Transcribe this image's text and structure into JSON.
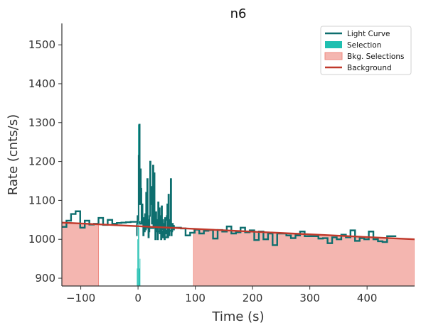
{
  "chart_data": {
    "type": "line",
    "title": "n6",
    "xlabel": "Time (s)",
    "ylabel": "Rate (cnts/s)",
    "xlim": [
      -133,
      483
    ],
    "ylim": [
      880,
      1555
    ],
    "xticks": [
      -100,
      0,
      100,
      200,
      300,
      400
    ],
    "yticks": [
      900,
      1000,
      1100,
      1200,
      1300,
      1400,
      1500
    ],
    "grid": false,
    "legend_position": "top-right",
    "legend": [
      {
        "label": "Light Curve",
        "kind": "line",
        "color": "#0d6e6e"
      },
      {
        "label": "Selection",
        "kind": "patch",
        "color": "#1fbfb0"
      },
      {
        "label": "Bkg. Selections",
        "kind": "patch",
        "color": "#f4b6b0"
      },
      {
        "label": "Background",
        "kind": "line",
        "color": "#c0392b"
      }
    ],
    "colors": {
      "light_curve": "#0d6e6e",
      "selection": "#1fbfb0",
      "bkg_fill": "#f4b6b0",
      "bkg_edge": "#ee8a80",
      "background": "#c0392b"
    },
    "background_line": {
      "x": [
        -133,
        483
      ],
      "y": [
        1043,
        1000
      ]
    },
    "bkg_selections": [
      [
        -133,
        -69
      ],
      [
        97,
        483
      ]
    ],
    "selection": {
      "range": [
        -2,
        4
      ],
      "values": [
        925,
        1000,
        1295,
        1030,
        925,
        950
      ]
    },
    "light_curve_coarse": {
      "step": 8,
      "x_start": -133,
      "values": [
        1032,
        1048,
        1065,
        1072,
        1030,
        1048,
        1038,
        1040,
        1055,
        1037,
        1050,
        1040,
        1042,
        1043,
        1044,
        1045,
        1045,
        1040,
        1030,
        1029,
        1038,
        1020,
        1005,
        1022,
        1030,
        1030,
        1028,
        1010,
        1017,
        1025,
        1015,
        1022,
        1024,
        1002,
        1024,
        1020,
        1033,
        1015,
        1018,
        1030,
        1018,
        1023,
        998,
        1020,
        1000,
        1015,
        985,
        1015,
        1015,
        1010,
        1003,
        1010,
        1020,
        1008,
        1008,
        1008,
        1002,
        1003,
        990,
        1005,
        1000,
        1012,
        1005,
        1023,
        996,
        1003,
        1000,
        1020,
        1000,
        995,
        993,
        1008,
        1008
      ]
    },
    "light_curve_fine": {
      "step": 1,
      "x_start": -3,
      "values": [
        1010,
        1040,
        1060,
        1050,
        1215,
        1295,
        1090,
        1180,
        1130,
        1040,
        1090,
        1050,
        1010,
        1055,
        1020,
        1065,
        1025,
        1120,
        1035,
        1155,
        1050,
        1005,
        1020,
        1060,
        1200,
        1090,
        1135,
        1040,
        1110,
        1190,
        1030,
        1170,
        1050,
        1000,
        1070,
        1020,
        1050,
        1000,
        1095,
        1030,
        1080,
        1015,
        1060,
        1000,
        1085,
        1025,
        1050,
        1010,
        1040,
        1000,
        1055,
        1015,
        1050,
        1060,
        1090,
        1005,
        1115,
        1010,
        1050,
        1030,
        1155,
        1010,
        1020,
        1040,
        1030,
        1025,
        1035
      ]
    }
  }
}
